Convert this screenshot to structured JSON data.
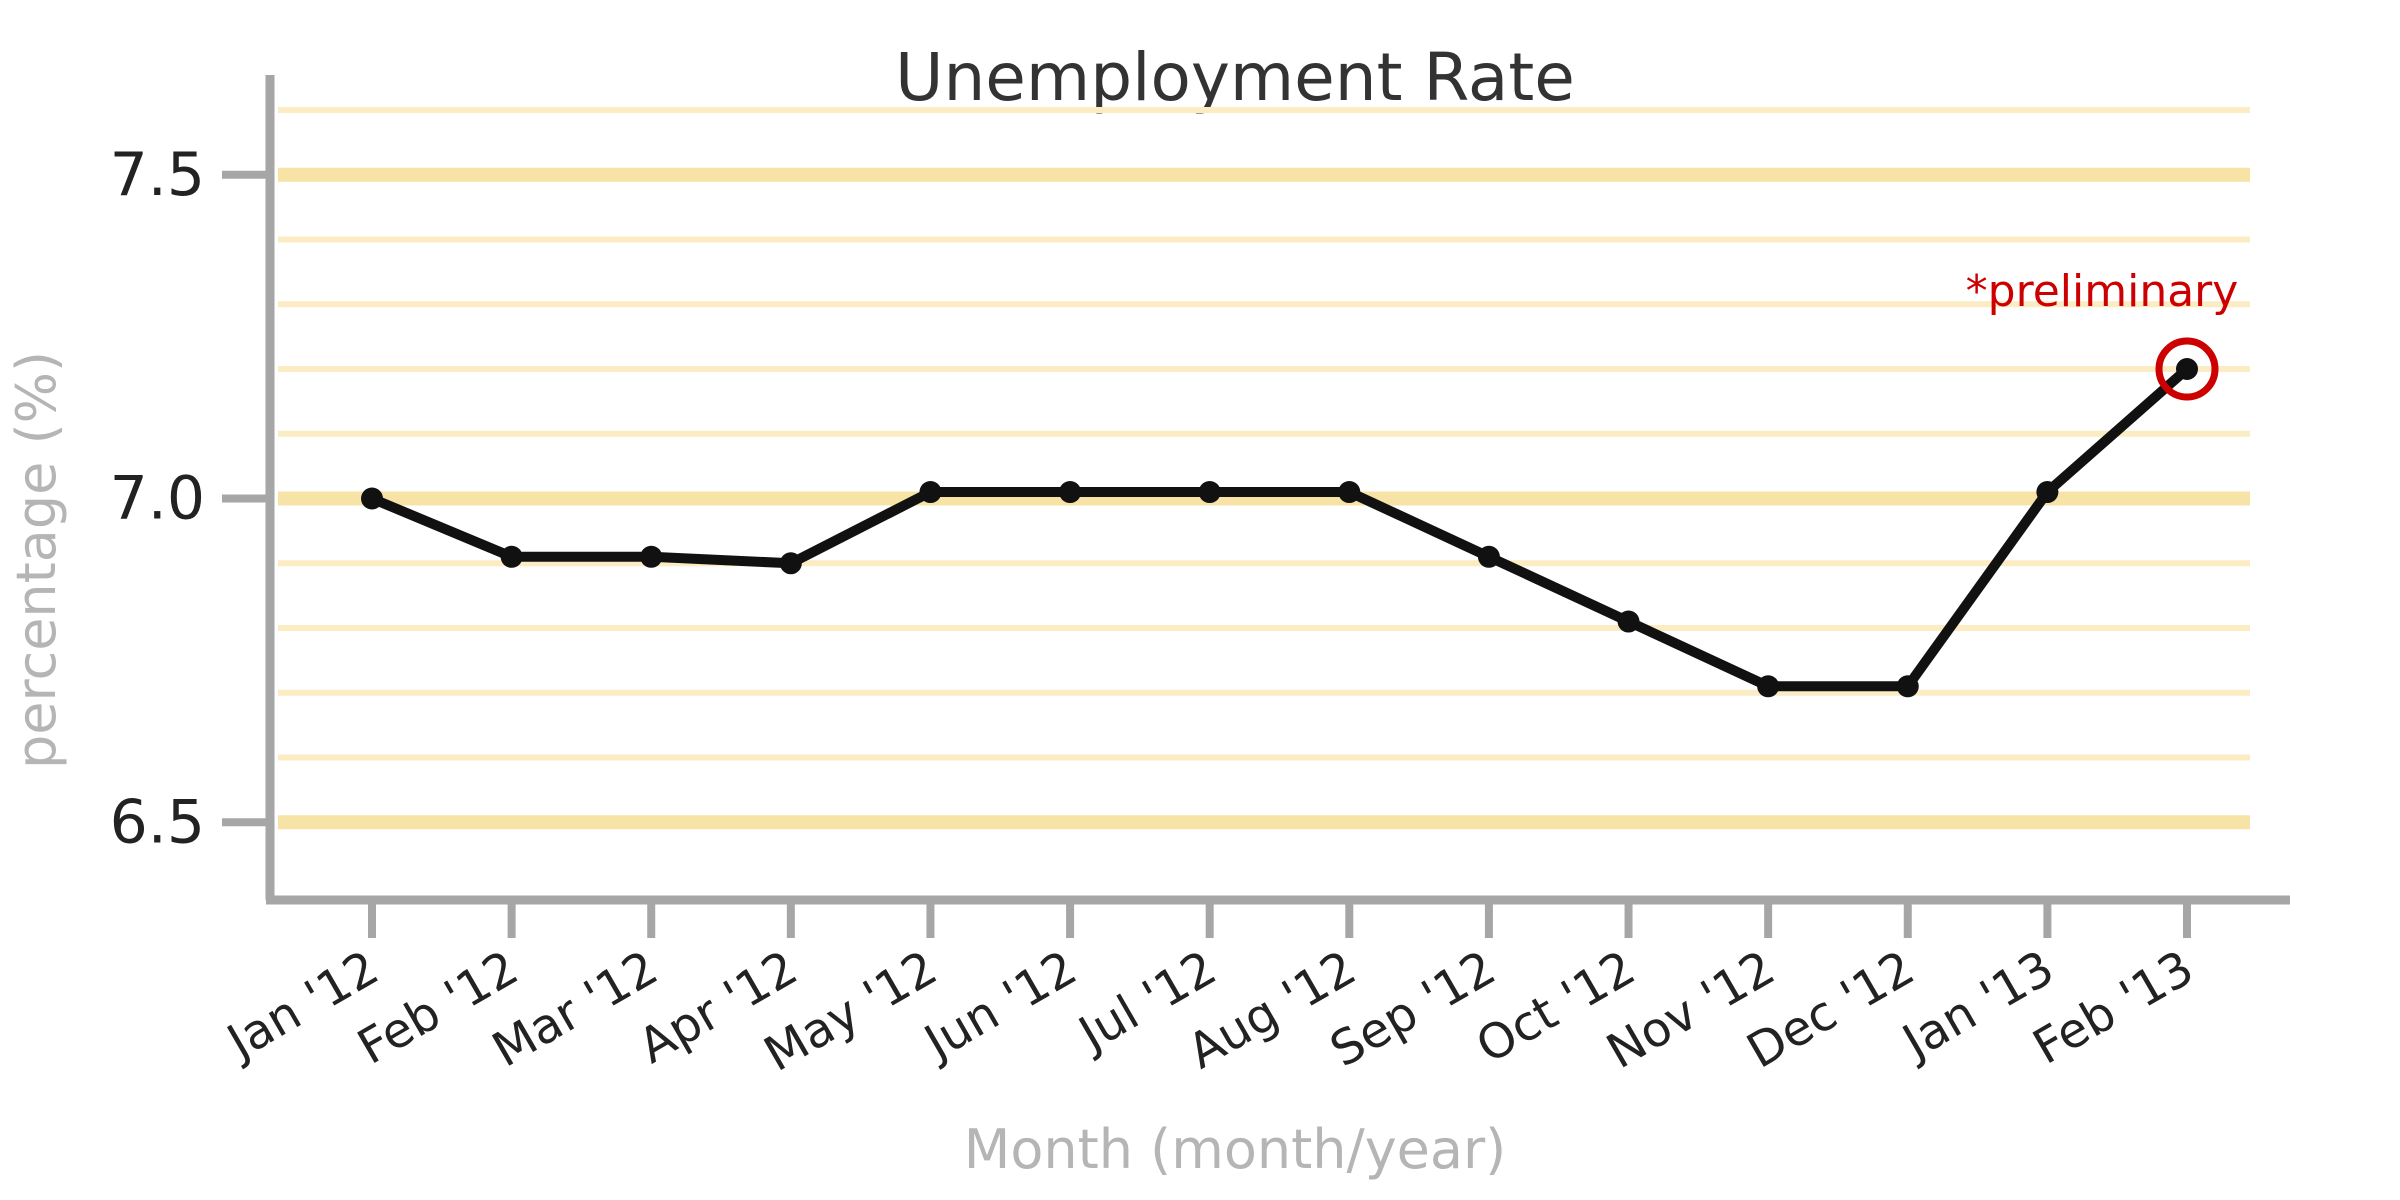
{
  "chart_data": {
    "type": "line",
    "title": "Unemployment Rate",
    "xlabel": "Month (month/year)",
    "ylabel": "percentage (%)",
    "categories": [
      "Jan '12",
      "Feb '12",
      "Mar '12",
      "Apr '12",
      "May '12",
      "Jun '12",
      "Jul '12",
      "Aug '12",
      "Sep '12",
      "Oct '12",
      "Nov '12",
      "Dec '12",
      "Jan '13",
      "Feb '13"
    ],
    "series": [
      {
        "values": [
          7.0,
          6.91,
          6.91,
          6.9,
          7.01,
          7.01,
          7.01,
          7.01,
          6.91,
          6.81,
          6.71,
          6.71,
          7.01,
          7.2
        ]
      }
    ],
    "ylim": [
      6.38,
      7.6
    ],
    "yticks": [
      6.5,
      7.0,
      7.5
    ],
    "ytick_labels": [
      "6.5",
      "7.0",
      "7.5"
    ],
    "minor_grid_step": 0.1,
    "grid": true,
    "legend": "none",
    "annotation": {
      "text": "*preliminary",
      "category": "Feb '13",
      "value": 7.2
    },
    "colors": {
      "line": "#111111",
      "grid_major": "#f8e3a6",
      "grid_minor": "#fbecc3",
      "axis": "#a6a6a6",
      "annotation": "#cc0000",
      "axis_label": "#b5b5b5"
    }
  }
}
